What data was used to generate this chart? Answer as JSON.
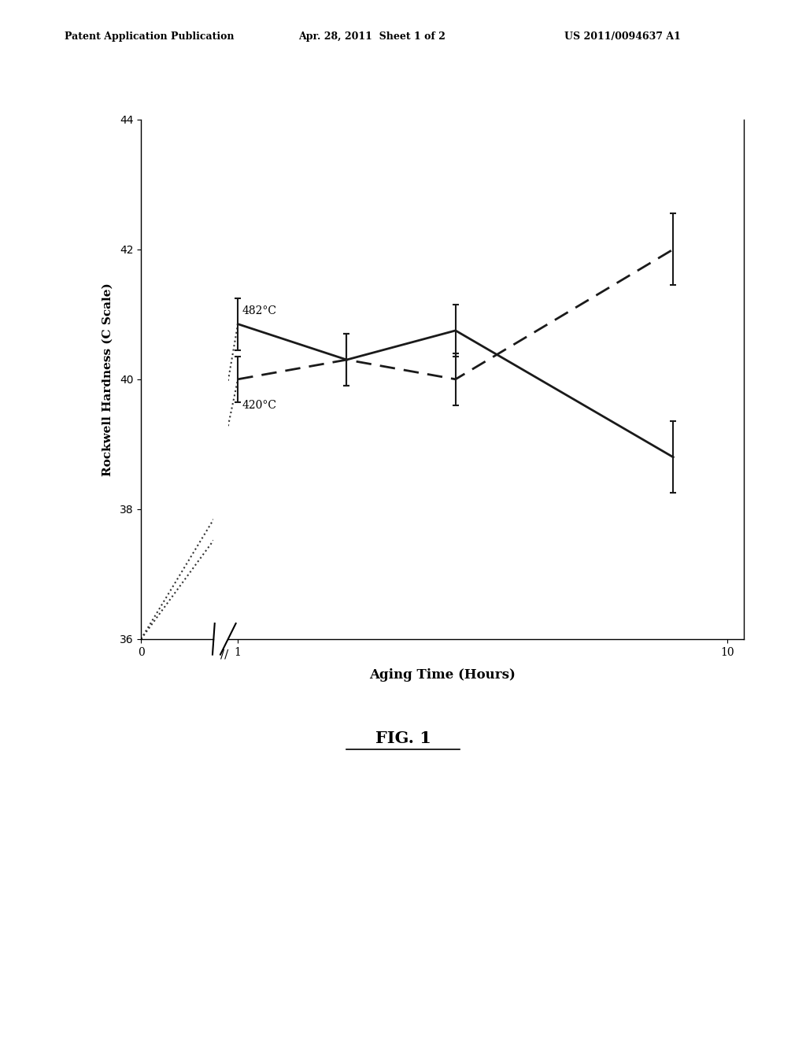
{
  "title": "",
  "xlabel": "Aging Time (Hours)",
  "ylabel": "Rockwell Hardness (C Scale)",
  "background_color": "#ffffff",
  "text_color": "#000000",
  "ylim": [
    36,
    44
  ],
  "yticks": [
    36,
    38,
    40,
    42,
    44
  ],
  "header_left": "Patent Application Publication",
  "header_center": "Apr. 28, 2011  Sheet 1 of 2",
  "header_right": "US 2011/0094637 A1",
  "fig_caption": "FIG. 1",
  "series_482": {
    "label": "482°C",
    "x": [
      1,
      3,
      5,
      9
    ],
    "y": [
      40.85,
      40.3,
      40.75,
      38.8
    ],
    "yerr": [
      0.4,
      0.4,
      0.4,
      0.55
    ],
    "linestyle": "solid",
    "color": "#1a1a1a",
    "linewidth": 2.0
  },
  "series_420": {
    "label": "420°C",
    "x": [
      1,
      3,
      5,
      9
    ],
    "y": [
      40.0,
      40.3,
      40.0,
      42.0
    ],
    "yerr": [
      0.35,
      0.4,
      0.4,
      0.55
    ],
    "linestyle": "dashed",
    "color": "#1a1a1a",
    "linewidth": 2.0
  },
  "dotted_slope_482": 4.85,
  "dotted_slope_420": 4.0,
  "dotted_color": "#333333",
  "dotted_linewidth": 1.5
}
